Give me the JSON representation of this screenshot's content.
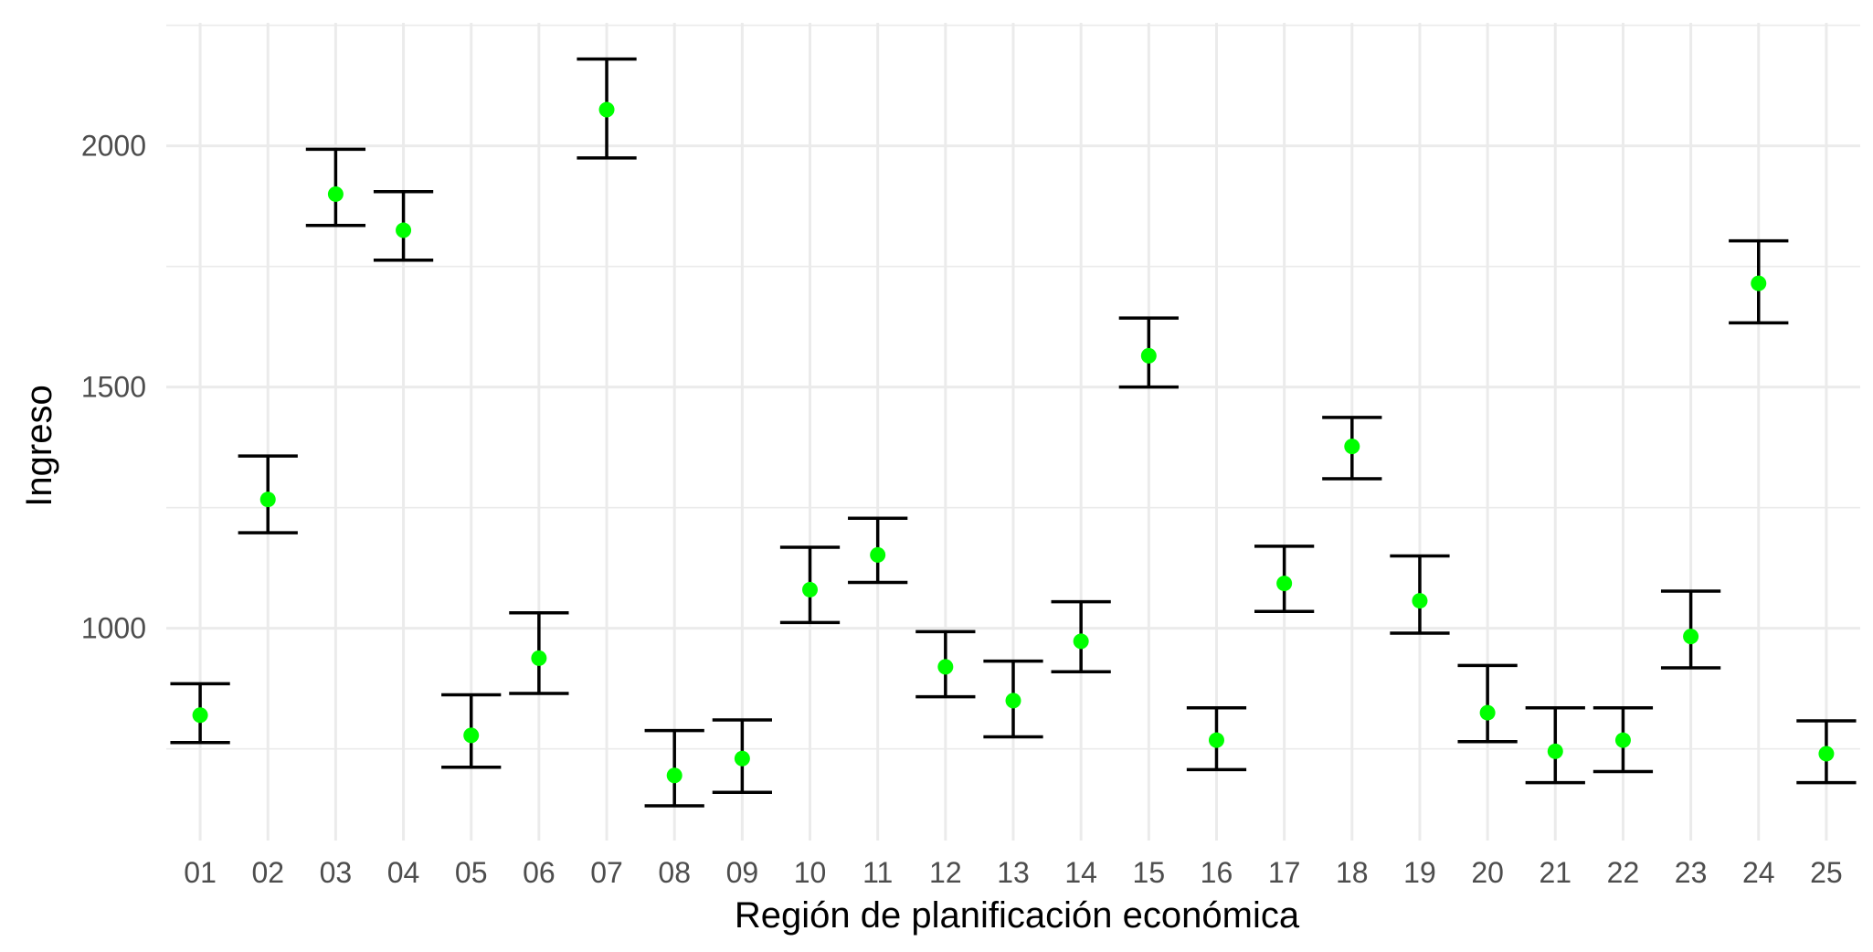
{
  "chart_data": {
    "type": "scatter",
    "title": "",
    "xlabel": "Región de planificación económica",
    "ylabel": "Ingreso",
    "categories": [
      "01",
      "02",
      "03",
      "04",
      "05",
      "06",
      "07",
      "08",
      "09",
      "10",
      "11",
      "12",
      "13",
      "14",
      "15",
      "16",
      "17",
      "18",
      "19",
      "20",
      "21",
      "22",
      "23",
      "24",
      "25"
    ],
    "series": [
      {
        "values": [
          820,
          1267,
          1900,
          1825,
          778,
          938,
          2075,
          695,
          730,
          1080,
          1152,
          920,
          850,
          973,
          1565,
          768,
          1093,
          1377,
          1057,
          825,
          745,
          768,
          983,
          1715,
          740
        ],
        "lower": [
          763,
          1198,
          1835,
          1763,
          712,
          865,
          1975,
          632,
          660,
          1012,
          1095,
          858,
          775,
          910,
          1500,
          707,
          1035,
          1310,
          990,
          765,
          680,
          703,
          918,
          1633,
          680
        ],
        "upper": [
          885,
          1357,
          1993,
          1905,
          862,
          1032,
          2180,
          788,
          810,
          1168,
          1228,
          993,
          932,
          1055,
          1643,
          835,
          1170,
          1437,
          1150,
          923,
          835,
          835,
          1077,
          1803,
          808
        ]
      }
    ],
    "ylim": [
      560,
      2255
    ],
    "yticks": [
      1000,
      1500,
      2000
    ],
    "yticklabels": [
      "1000",
      "1500",
      "2000"
    ],
    "grid": true,
    "point_color": "#00ff00",
    "errorbar_color": "#000000",
    "grid_color": "#ebebeb"
  }
}
